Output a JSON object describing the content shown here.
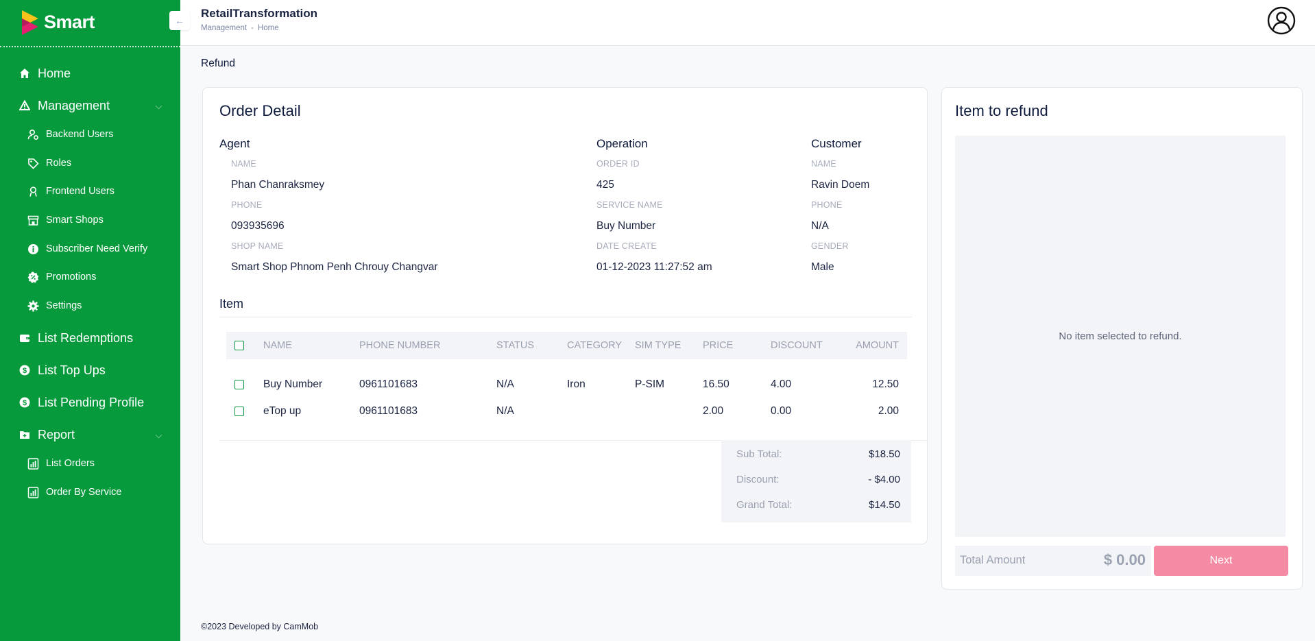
{
  "brand": {
    "name": "Smart"
  },
  "sidebar": {
    "items": [
      {
        "label": "Home",
        "icon": "home-icon"
      },
      {
        "label": "Management",
        "icon": "warning-triangle-icon",
        "expandable": true
      },
      {
        "label": "Backend Users",
        "icon": "user-gear-icon"
      },
      {
        "label": "Roles",
        "icon": "tag-icon"
      },
      {
        "label": "Frontend Users",
        "icon": "user-badge-icon"
      },
      {
        "label": "Smart Shops",
        "icon": "store-icon"
      },
      {
        "label": "Subscriber Need Verify",
        "icon": "info-circle-icon"
      },
      {
        "label": "Promotions",
        "icon": "badge-percent-icon"
      },
      {
        "label": "Settings",
        "icon": "gear-icon"
      },
      {
        "label": "List Redemptions",
        "icon": "wallet-icon"
      },
      {
        "label": "List Top Ups",
        "icon": "dollar-circle-icon"
      },
      {
        "label": "List Pending Profile",
        "icon": "dollar-circle-icon"
      },
      {
        "label": "Report",
        "icon": "folder-icon",
        "expandable": true
      },
      {
        "label": "List Orders",
        "icon": "report-icon"
      },
      {
        "label": "Order By Service",
        "icon": "report-icon"
      }
    ]
  },
  "header": {
    "title": "RetailTransformation",
    "breadcrumb": [
      "Management",
      "-",
      "Home"
    ]
  },
  "page": {
    "title": "Refund"
  },
  "order": {
    "title": "Order Detail",
    "agent": {
      "heading": "Agent",
      "name_label": "NAME",
      "name": "Phan Chanraksmey",
      "phone_label": "PHONE",
      "phone": "093935696",
      "shop_label": "SHOP NAME",
      "shop": "Smart Shop Phnom Penh Chrouy Changvar"
    },
    "operation": {
      "heading": "Operation",
      "order_id_label": "ORDER ID",
      "order_id": "425",
      "service_label": "SERVICE NAME",
      "service": "Buy Number",
      "date_label": "DATE CREATE",
      "date": "01-12-2023 11:27:52 am"
    },
    "customer": {
      "heading": "Customer",
      "name_label": "NAME",
      "name": "Ravin Doem",
      "phone_label": "PHONE",
      "phone": "N/A",
      "gender_label": "GENDER",
      "gender": "Male"
    },
    "items_title": "Item",
    "columns": [
      "NAME",
      "PHONE NUMBER",
      "STATUS",
      "CATEGORY",
      "SIM TYPE",
      "PRICE",
      "DISCOUNT",
      "AMOUNT"
    ],
    "rows": [
      {
        "name": "Buy Number",
        "phone": "0961101683",
        "status": "N/A",
        "category": "Iron",
        "sim_type": "P-SIM",
        "price": "16.50",
        "discount": "4.00",
        "amount": "12.50"
      },
      {
        "name": "eTop up",
        "phone": "0961101683",
        "status": "N/A",
        "category": "",
        "sim_type": "",
        "price": "2.00",
        "discount": "0.00",
        "amount": "2.00"
      }
    ],
    "totals": {
      "subtotal_label": "Sub Total:",
      "subtotal": "$18.50",
      "discount_label": "Discount:",
      "discount": "- $4.00",
      "grand_label": "Grand Total:",
      "grand": "$14.50"
    }
  },
  "refund": {
    "title": "Item to refund",
    "empty_text": "No item selected to refund.",
    "total_label": "Total Amount",
    "total_value": "$ 0.00",
    "next_label": "Next"
  },
  "footer": {
    "text": "©2023  Developed by CamMob"
  },
  "colors": {
    "sidebar": "#069a3c",
    "accent_pink": "#f48aa3",
    "checkbox": "#0a9a47"
  }
}
